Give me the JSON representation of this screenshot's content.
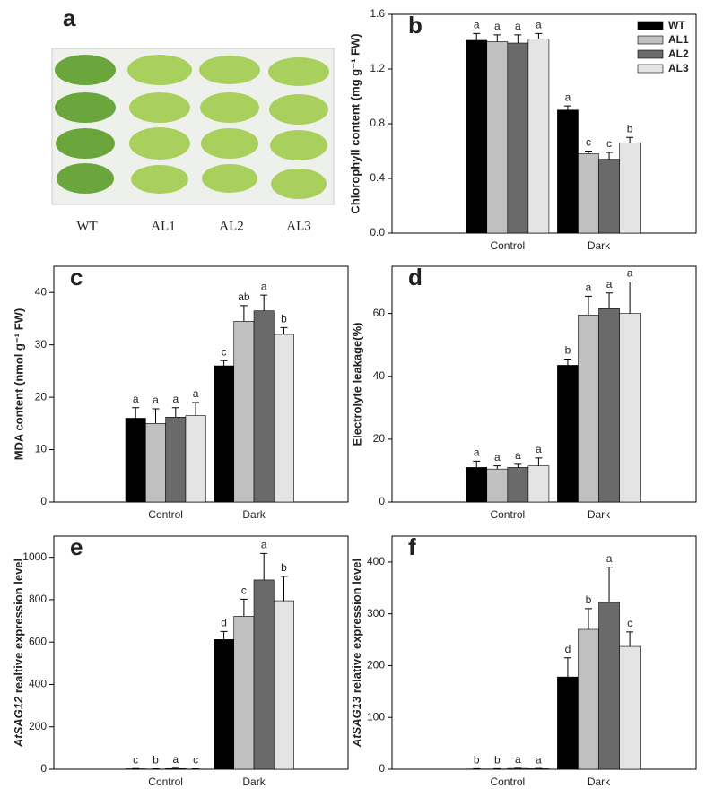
{
  "photo": {
    "panel": "a",
    "labels": [
      "WT",
      "AL1",
      "AL2",
      "AL3"
    ]
  },
  "chart_data": [
    {
      "type": "bar",
      "panel": "b",
      "ylabel": "Chlorophyll content (mg g⁻¹ FW)",
      "categories": [
        "Control",
        "Dark"
      ],
      "ylim": [
        0,
        1.6
      ],
      "yticks": [
        {
          "value": 0,
          "label": "0.0"
        },
        {
          "value": 0.4,
          "label": "0.4"
        },
        {
          "value": 0.8,
          "label": "0.8"
        },
        {
          "value": 1.2,
          "label": "1.2"
        },
        {
          "value": 1.6,
          "label": "1.6"
        }
      ],
      "legend": "top-right",
      "series": [
        {
          "name": "WT",
          "color": "#000000",
          "values": [
            1.41,
            0.9
          ],
          "errors": [
            0.05,
            0.03
          ],
          "letters": [
            "a",
            "a"
          ]
        },
        {
          "name": "AL1",
          "color": "#c0c0c0",
          "values": [
            1.4,
            0.58
          ],
          "errors": [
            0.05,
            0.02
          ],
          "letters": [
            "a",
            "c"
          ]
        },
        {
          "name": "AL2",
          "color": "#6a6a6a",
          "values": [
            1.39,
            0.54
          ],
          "errors": [
            0.06,
            0.05
          ],
          "letters": [
            "a",
            "c"
          ]
        },
        {
          "name": "AL3",
          "color": "#e4e4e4",
          "values": [
            1.42,
            0.66
          ],
          "errors": [
            0.04,
            0.04
          ],
          "letters": [
            "a",
            "b"
          ]
        }
      ]
    },
    {
      "type": "bar",
      "panel": "c",
      "ylabel": "MDA content (nmol g⁻¹ FW)",
      "categories": [
        "Control",
        "Dark"
      ],
      "ylim": [
        0,
        45
      ],
      "yticks": [
        0,
        10,
        20,
        30,
        40
      ],
      "series": [
        {
          "color": "#000000",
          "values": [
            16,
            26
          ],
          "errors": [
            2,
            1
          ],
          "letters": [
            "a",
            "c"
          ]
        },
        {
          "color": "#c0c0c0",
          "values": [
            15,
            34.5
          ],
          "errors": [
            2.8,
            3
          ],
          "letters": [
            "a",
            "ab"
          ]
        },
        {
          "color": "#6a6a6a",
          "values": [
            16.2,
            36.5
          ],
          "errors": [
            1.8,
            3
          ],
          "letters": [
            "a",
            "a"
          ]
        },
        {
          "color": "#e4e4e4",
          "values": [
            16.5,
            32
          ],
          "errors": [
            2.5,
            1.3
          ],
          "letters": [
            "a",
            "b"
          ]
        }
      ]
    },
    {
      "type": "bar",
      "panel": "d",
      "ylabel": "Electrolyte leakage(%)",
      "categories": [
        "Control",
        "Dark"
      ],
      "ylim": [
        0,
        75
      ],
      "yticks": [
        0,
        20,
        40,
        60
      ],
      "series": [
        {
          "color": "#000000",
          "values": [
            11,
            43.5
          ],
          "errors": [
            2,
            2
          ],
          "letters": [
            "a",
            "b"
          ]
        },
        {
          "color": "#c0c0c0",
          "values": [
            10.5,
            59.5
          ],
          "errors": [
            1,
            6
          ],
          "letters": [
            "a",
            "a"
          ]
        },
        {
          "color": "#6a6a6a",
          "values": [
            11,
            61.5
          ],
          "errors": [
            1,
            5
          ],
          "letters": [
            "a",
            "a"
          ]
        },
        {
          "color": "#e4e4e4",
          "values": [
            11.5,
            60
          ],
          "errors": [
            2.5,
            10
          ],
          "letters": [
            "a",
            "a"
          ]
        }
      ]
    },
    {
      "type": "bar",
      "panel": "e",
      "ylabel_gene": "AtSAG12",
      "ylabel": " realtive expression level",
      "categories": [
        "Control",
        "Dark"
      ],
      "ylim": [
        0,
        1100
      ],
      "yticks": [
        0,
        200,
        400,
        600,
        800,
        1000
      ],
      "series": [
        {
          "color": "#000000",
          "values": [
            2,
            612
          ],
          "errors": [
            1,
            38
          ],
          "letters": [
            "c",
            "d"
          ]
        },
        {
          "color": "#c0c0c0",
          "values": [
            1,
            722
          ],
          "errors": [
            1,
            80
          ],
          "letters": [
            "b",
            "c"
          ]
        },
        {
          "color": "#6a6a6a",
          "values": [
            3,
            893
          ],
          "errors": [
            2,
            125
          ],
          "letters": [
            "a",
            "a"
          ]
        },
        {
          "color": "#e4e4e4",
          "values": [
            1,
            795
          ],
          "errors": [
            1,
            115
          ],
          "letters": [
            "c",
            "b"
          ]
        }
      ]
    },
    {
      "type": "bar",
      "panel": "f",
      "ylabel_gene": "AtSAG13",
      "ylabel": " relative expression level",
      "categories": [
        "Control",
        "Dark"
      ],
      "ylim": [
        0,
        450
      ],
      "yticks": [
        0,
        100,
        200,
        300,
        400
      ],
      "series": [
        {
          "color": "#000000",
          "values": [
            0.5,
            178
          ],
          "errors": [
            0.5,
            37
          ],
          "letters": [
            "b",
            "d"
          ]
        },
        {
          "color": "#c0c0c0",
          "values": [
            0.5,
            270
          ],
          "errors": [
            0.5,
            40
          ],
          "letters": [
            "b",
            "b"
          ]
        },
        {
          "color": "#6a6a6a",
          "values": [
            1.5,
            322
          ],
          "errors": [
            0.5,
            68
          ],
          "letters": [
            "a",
            "a"
          ]
        },
        {
          "color": "#e4e4e4",
          "values": [
            1,
            237
          ],
          "errors": [
            0.5,
            28
          ],
          "letters": [
            "a",
            "c"
          ]
        }
      ]
    }
  ]
}
